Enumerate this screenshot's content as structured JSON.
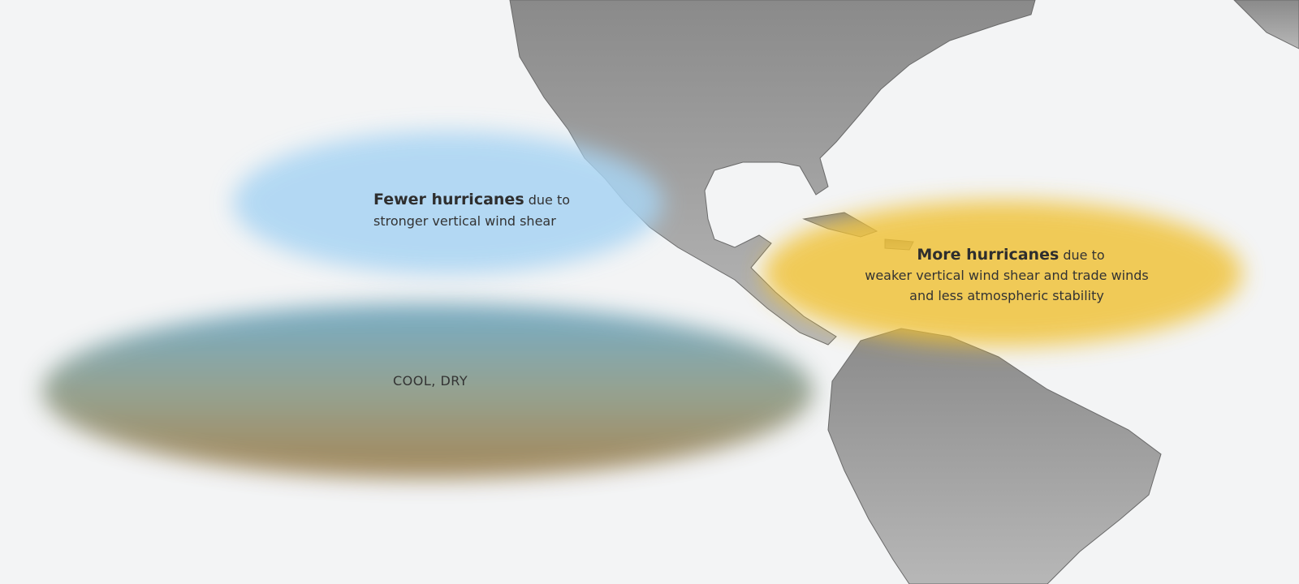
{
  "annotations": [
    {
      "headline": "Fewer hurricanes",
      "rest": "due to",
      "lines": [
        "stronger vertical wind shear"
      ]
    },
    {
      "headline": "More hurricanes",
      "rest": "due to",
      "lines": [
        "weaker vertical wind shear and trade winds",
        "and less atmospheric stability"
      ]
    },
    {
      "headline": "COOL, DRY"
    }
  ]
}
